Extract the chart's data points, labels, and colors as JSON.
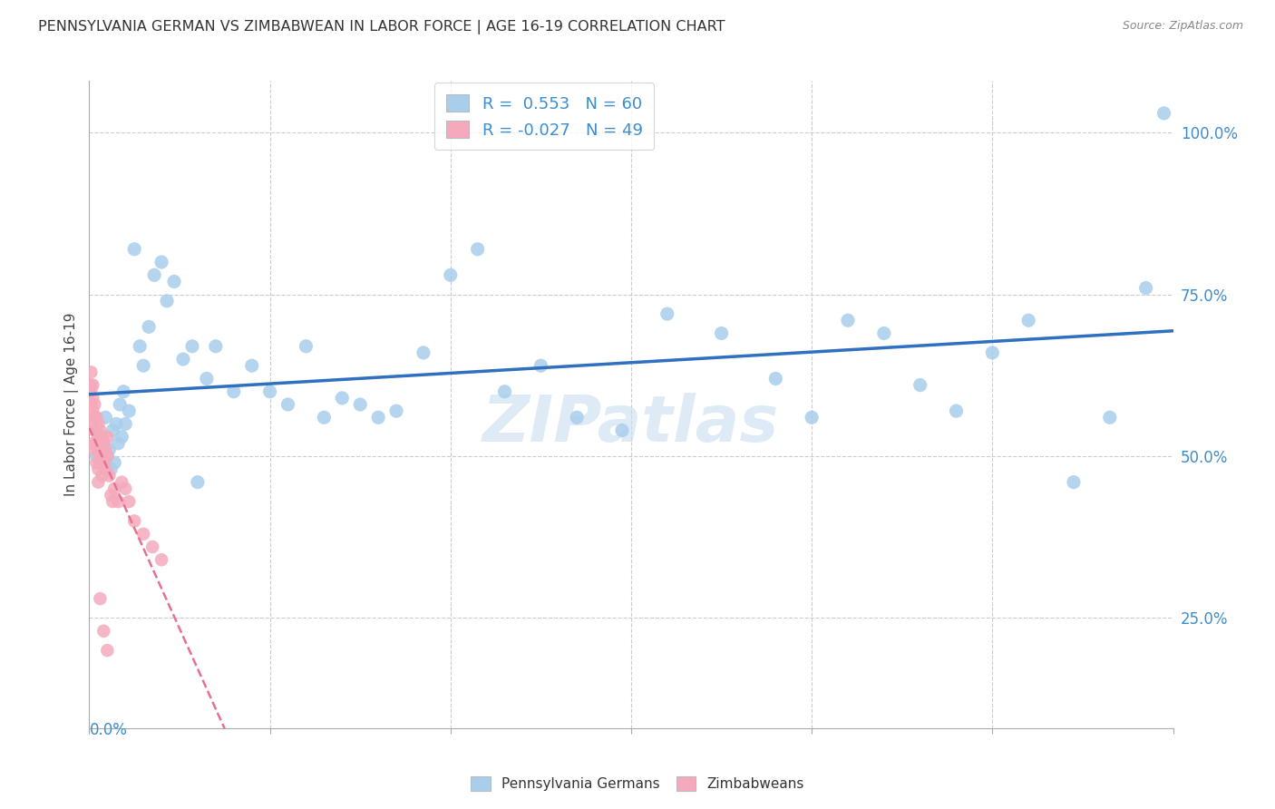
{
  "title": "PENNSYLVANIA GERMAN VS ZIMBABWEAN IN LABOR FORCE | AGE 16-19 CORRELATION CHART",
  "source": "Source: ZipAtlas.com",
  "ylabel": "In Labor Force | Age 16-19",
  "ylabel_right_ticks": [
    "25.0%",
    "50.0%",
    "75.0%",
    "100.0%"
  ],
  "ylabel_right_values": [
    0.25,
    0.5,
    0.75,
    1.0
  ],
  "xmin": 0.0,
  "xmax": 0.6,
  "ymin": 0.08,
  "ymax": 1.08,
  "legend_blue_r": "0.553",
  "legend_blue_n": "60",
  "legend_pink_r": "-0.027",
  "legend_pink_n": "49",
  "blue_scatter_color": "#A8CEEC",
  "pink_scatter_color": "#F4AABB",
  "blue_line_color": "#3070C0",
  "pink_line_color": "#E87090",
  "watermark": "ZIPatlas",
  "blue_x": [
    0.004,
    0.006,
    0.008,
    0.009,
    0.01,
    0.011,
    0.012,
    0.013,
    0.014,
    0.015,
    0.016,
    0.017,
    0.018,
    0.019,
    0.02,
    0.022,
    0.025,
    0.028,
    0.03,
    0.033,
    0.036,
    0.04,
    0.043,
    0.047,
    0.052,
    0.057,
    0.06,
    0.065,
    0.07,
    0.08,
    0.09,
    0.1,
    0.11,
    0.12,
    0.13,
    0.14,
    0.15,
    0.16,
    0.17,
    0.185,
    0.2,
    0.215,
    0.23,
    0.25,
    0.27,
    0.295,
    0.32,
    0.35,
    0.38,
    0.4,
    0.42,
    0.44,
    0.46,
    0.48,
    0.5,
    0.52,
    0.545,
    0.565,
    0.585,
    0.595
  ],
  "blue_y": [
    0.5,
    0.53,
    0.52,
    0.56,
    0.5,
    0.51,
    0.48,
    0.54,
    0.49,
    0.55,
    0.52,
    0.58,
    0.53,
    0.6,
    0.55,
    0.57,
    0.82,
    0.67,
    0.64,
    0.7,
    0.78,
    0.8,
    0.74,
    0.77,
    0.65,
    0.67,
    0.46,
    0.62,
    0.67,
    0.6,
    0.64,
    0.6,
    0.58,
    0.67,
    0.56,
    0.59,
    0.58,
    0.56,
    0.57,
    0.66,
    0.78,
    0.82,
    0.6,
    0.64,
    0.56,
    0.54,
    0.72,
    0.69,
    0.62,
    0.56,
    0.71,
    0.69,
    0.61,
    0.57,
    0.66,
    0.71,
    0.46,
    0.56,
    0.76,
    1.03
  ],
  "pink_x": [
    0.001,
    0.001,
    0.001,
    0.001,
    0.002,
    0.002,
    0.002,
    0.002,
    0.002,
    0.003,
    0.003,
    0.003,
    0.003,
    0.004,
    0.004,
    0.004,
    0.004,
    0.005,
    0.005,
    0.005,
    0.005,
    0.005,
    0.006,
    0.006,
    0.006,
    0.007,
    0.007,
    0.007,
    0.008,
    0.008,
    0.009,
    0.009,
    0.01,
    0.01,
    0.011,
    0.012,
    0.013,
    0.014,
    0.016,
    0.018,
    0.02,
    0.022,
    0.025,
    0.03,
    0.035,
    0.04,
    0.006,
    0.008,
    0.01
  ],
  "pink_y": [
    0.63,
    0.61,
    0.6,
    0.58,
    0.61,
    0.59,
    0.57,
    0.55,
    0.52,
    0.58,
    0.56,
    0.54,
    0.51,
    0.56,
    0.54,
    0.52,
    0.49,
    0.55,
    0.53,
    0.51,
    0.48,
    0.46,
    0.54,
    0.52,
    0.49,
    0.53,
    0.5,
    0.47,
    0.52,
    0.49,
    0.51,
    0.48,
    0.53,
    0.5,
    0.47,
    0.44,
    0.43,
    0.45,
    0.43,
    0.46,
    0.45,
    0.43,
    0.4,
    0.38,
    0.36,
    0.34,
    0.28,
    0.23,
    0.2
  ]
}
